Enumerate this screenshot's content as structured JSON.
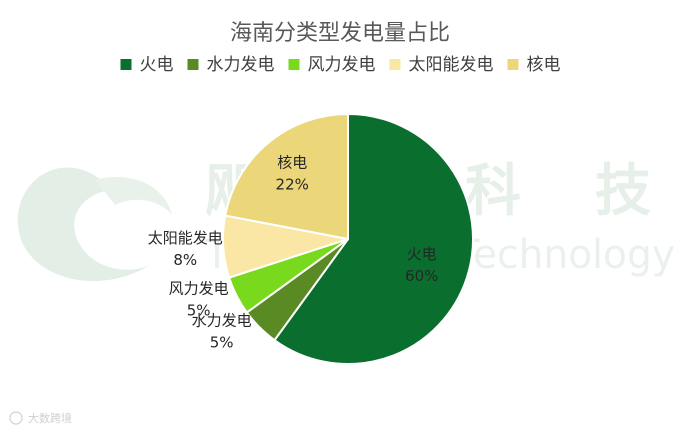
{
  "chart_data": {
    "type": "pie",
    "title": "海南分类型发电量占比",
    "legend_position": "top",
    "slices": [
      {
        "name": "火电",
        "value": 60,
        "label": "60%",
        "color": "#0a6e2f"
      },
      {
        "name": "水力发电",
        "value": 5,
        "label": "5%",
        "color": "#5a8a24"
      },
      {
        "name": "风力发电",
        "value": 5,
        "label": "5%",
        "color": "#79d91c"
      },
      {
        "name": "太阳能发电",
        "value": 8,
        "label": "8%",
        "color": "#fae7a6"
      },
      {
        "name": "核电",
        "value": 22,
        "label": "22%",
        "color": "#ebd779"
      }
    ]
  },
  "watermark": {
    "cn_chars": [
      "飓",
      "合",
      "科",
      "技"
    ],
    "latin": "TradingThinkTechnology"
  },
  "footer": {
    "text": "大数跨境"
  }
}
